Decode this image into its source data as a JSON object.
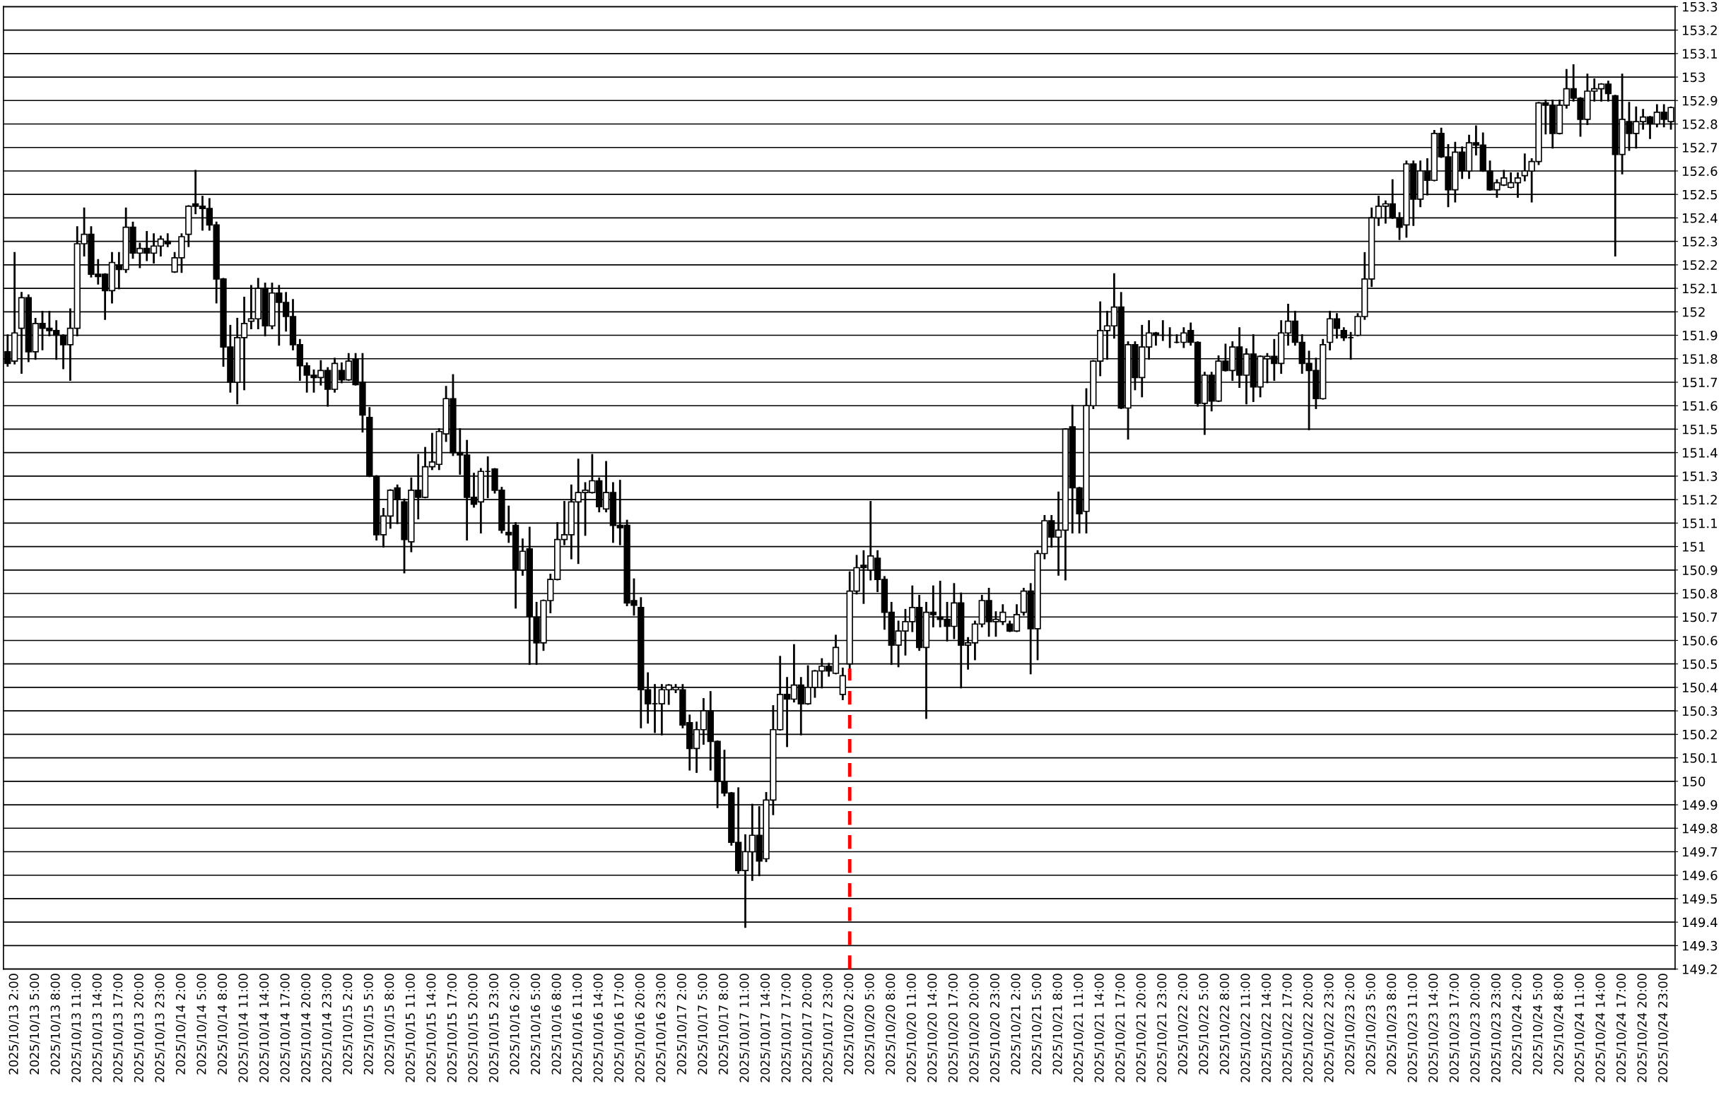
{
  "chart_data": {
    "type": "candlestick",
    "categories": [
      null,
      "2025/10/13 2:00",
      null,
      null,
      "2025/10/13 5:00",
      null,
      null,
      "2025/10/13 8:00",
      null,
      null,
      "2025/10/13 11:00",
      null,
      null,
      "2025/10/13 14:00",
      null,
      null,
      "2025/10/13 17:00",
      null,
      null,
      "2025/10/13 20:00",
      null,
      null,
      "2025/10/13 23:00",
      null,
      null,
      "2025/10/14 2:00",
      null,
      null,
      "2025/10/14 5:00",
      null,
      null,
      "2025/10/14 8:00",
      null,
      null,
      "2025/10/14 11:00",
      null,
      null,
      "2025/10/14 14:00",
      null,
      null,
      "2025/10/14 17:00",
      null,
      null,
      "2025/10/14 20:00",
      null,
      null,
      "2025/10/14 23:00",
      null,
      null,
      "2025/10/15 2:00",
      null,
      null,
      "2025/10/15 5:00",
      null,
      null,
      "2025/10/15 8:00",
      null,
      null,
      "2025/10/15 11:00",
      null,
      null,
      "2025/10/15 14:00",
      null,
      null,
      "2025/10/15 17:00",
      null,
      null,
      "2025/10/15 20:00",
      null,
      null,
      "2025/10/15 23:00",
      null,
      null,
      "2025/10/16 2:00",
      null,
      null,
      "2025/10/16 5:00",
      null,
      null,
      "2025/10/16 8:00",
      null,
      null,
      "2025/10/16 11:00",
      null,
      null,
      "2025/10/16 14:00",
      null,
      null,
      "2025/10/16 17:00",
      null,
      null,
      "2025/10/16 20:00",
      null,
      null,
      "2025/10/16 23:00",
      null,
      null,
      "2025/10/17 2:00",
      null,
      null,
      "2025/10/17 5:00",
      null,
      null,
      "2025/10/17 8:00",
      null,
      null,
      "2025/10/17 11:00",
      null,
      null,
      "2025/10/17 14:00",
      null,
      null,
      "2025/10/17 17:00",
      null,
      null,
      "2025/10/17 20:00",
      null,
      null,
      "2025/10/17 23:00",
      null,
      null,
      "2025/10/20 2:00",
      null,
      null,
      "2025/10/20 5:00",
      null,
      null,
      "2025/10/20 8:00",
      null,
      null,
      "2025/10/20 11:00",
      null,
      null,
      "2025/10/20 14:00",
      null,
      null,
      "2025/10/20 17:00",
      null,
      null,
      "2025/10/20 20:00",
      null,
      null,
      "2025/10/20 23:00",
      null,
      null,
      "2025/10/21 2:00",
      null,
      null,
      "2025/10/21 5:00",
      null,
      null,
      "2025/10/21 8:00",
      null,
      null,
      "2025/10/21 11:00",
      null,
      null,
      "2025/10/21 14:00",
      null,
      null,
      "2025/10/21 17:00",
      null,
      null,
      "2025/10/21 20:00",
      null,
      null,
      "2025/10/21 23:00",
      null,
      null,
      "2025/10/22 2:00",
      null,
      null,
      "2025/10/22 5:00",
      null,
      null,
      "2025/10/22 8:00",
      null,
      null,
      "2025/10/22 11:00",
      null,
      null,
      "2025/10/22 14:00",
      null,
      null,
      "2025/10/22 17:00",
      null,
      null,
      "2025/10/22 20:00",
      null,
      null,
      "2025/10/22 23:00",
      null,
      null,
      "2025/10/23 2:00",
      null,
      null,
      "2025/10/23 5:00",
      null,
      null,
      "2025/10/23 8:00",
      null,
      null,
      "2025/10/23 11:00",
      null,
      null,
      "2025/10/23 14:00",
      null,
      null,
      "2025/10/23 17:00",
      null,
      null,
      "2025/10/23 20:00",
      null,
      null,
      "2025/10/23 23:00",
      null,
      null,
      "2025/10/24 2:00",
      null,
      null,
      "2025/10/24 5:00",
      null,
      null,
      "2025/10/24 8:00",
      null,
      null,
      "2025/10/24 11:00",
      null,
      null,
      "2025/10/24 14:00",
      null,
      null,
      "2025/10/24 17:00",
      null,
      null,
      "2025/10/24 20:00",
      null,
      null,
      "2025/10/24 23:00",
      null
    ],
    "ohlc": [
      [
        151.83,
        151.9,
        151.77,
        151.78
      ],
      [
        151.79,
        152.25,
        151.78,
        151.91
      ],
      [
        151.93,
        152.08,
        151.74,
        152.06
      ],
      [
        152.06,
        152.07,
        151.79,
        151.83
      ],
      [
        151.83,
        151.97,
        151.8,
        151.95
      ],
      [
        151.95,
        152.0,
        151.84,
        151.93
      ],
      [
        151.93,
        152.0,
        151.9,
        151.92
      ],
      [
        151.92,
        151.96,
        151.8,
        151.9
      ],
      [
        151.9,
        151.9,
        151.76,
        151.86
      ],
      [
        151.86,
        152.01,
        151.71,
        151.93
      ],
      [
        151.93,
        152.36,
        151.9,
        152.29
      ],
      [
        152.29,
        152.44,
        152.24,
        152.33
      ],
      [
        152.33,
        152.36,
        152.15,
        152.16
      ],
      [
        152.16,
        152.22,
        152.12,
        152.15
      ],
      [
        152.16,
        152.16,
        151.97,
        152.09
      ],
      [
        152.09,
        152.25,
        152.04,
        152.21
      ],
      [
        152.2,
        152.25,
        152.1,
        152.18
      ],
      [
        152.18,
        152.44,
        152.17,
        152.36
      ],
      [
        152.36,
        152.38,
        152.23,
        152.25
      ],
      [
        152.25,
        152.29,
        152.19,
        152.27
      ],
      [
        152.27,
        152.34,
        152.22,
        152.25
      ],
      [
        152.25,
        152.33,
        152.21,
        152.28
      ],
      [
        152.28,
        152.32,
        152.24,
        152.31
      ],
      [
        152.3,
        152.33,
        152.28,
        152.29
      ],
      [
        152.17,
        152.25,
        152.17,
        152.23
      ],
      [
        152.23,
        152.33,
        152.17,
        152.32
      ],
      [
        152.33,
        152.45,
        152.28,
        152.45
      ],
      [
        152.46,
        152.6,
        152.42,
        152.45
      ],
      [
        152.45,
        152.49,
        152.35,
        152.44
      ],
      [
        152.44,
        152.48,
        152.35,
        152.37
      ],
      [
        152.37,
        152.38,
        152.04,
        152.14
      ],
      [
        152.14,
        152.14,
        151.77,
        151.85
      ],
      [
        151.85,
        151.94,
        151.66,
        151.7
      ],
      [
        151.7,
        151.97,
        151.61,
        151.89
      ],
      [
        151.89,
        152.06,
        151.67,
        151.95
      ],
      [
        151.96,
        152.11,
        151.93,
        151.97
      ],
      [
        151.97,
        152.14,
        151.93,
        152.1
      ],
      [
        152.1,
        152.12,
        151.9,
        151.94
      ],
      [
        151.94,
        152.12,
        151.93,
        152.08
      ],
      [
        152.08,
        152.11,
        151.86,
        152.04
      ],
      [
        152.04,
        152.08,
        151.92,
        151.98
      ],
      [
        151.98,
        152.05,
        151.84,
        151.86
      ],
      [
        151.86,
        151.88,
        151.71,
        151.77
      ],
      [
        151.77,
        151.78,
        151.66,
        151.73
      ],
      [
        151.73,
        151.75,
        151.66,
        151.72
      ],
      [
        151.72,
        151.79,
        151.69,
        151.75
      ],
      [
        151.75,
        151.76,
        151.6,
        151.67
      ],
      [
        151.67,
        151.8,
        151.66,
        151.78
      ],
      [
        151.75,
        151.78,
        151.7,
        151.71
      ],
      [
        151.71,
        151.82,
        151.71,
        151.79
      ],
      [
        151.8,
        151.82,
        151.69,
        151.69
      ],
      [
        151.7,
        151.82,
        151.49,
        151.56
      ],
      [
        151.55,
        151.59,
        151.3,
        151.3
      ],
      [
        151.3,
        151.3,
        151.03,
        151.05
      ],
      [
        151.05,
        151.16,
        151.0,
        151.13
      ],
      [
        151.13,
        151.24,
        151.08,
        151.24
      ],
      [
        151.25,
        151.26,
        151.1,
        151.2
      ],
      [
        151.19,
        151.2,
        150.89,
        151.03
      ],
      [
        151.02,
        151.29,
        150.98,
        151.24
      ],
      [
        151.24,
        151.39,
        151.12,
        151.21
      ],
      [
        151.21,
        151.42,
        151.21,
        151.34
      ],
      [
        151.34,
        151.48,
        151.33,
        151.36
      ],
      [
        151.35,
        151.5,
        151.33,
        151.49
      ],
      [
        151.48,
        151.68,
        151.45,
        151.63
      ],
      [
        151.63,
        151.73,
        151.39,
        151.4
      ],
      [
        151.4,
        151.5,
        151.31,
        151.39
      ],
      [
        151.39,
        151.45,
        151.03,
        151.21
      ],
      [
        151.21,
        151.31,
        151.17,
        151.18
      ],
      [
        151.19,
        151.33,
        151.06,
        151.32
      ],
      [
        151.32,
        151.38,
        151.21,
        151.32
      ],
      [
        151.33,
        151.33,
        151.23,
        151.24
      ],
      [
        151.24,
        151.25,
        151.06,
        151.07
      ],
      [
        151.06,
        151.17,
        151.02,
        151.05
      ],
      [
        151.09,
        151.1,
        150.74,
        150.9
      ],
      [
        150.9,
        151.03,
        150.88,
        150.98
      ],
      [
        150.99,
        151.08,
        150.5,
        150.7
      ],
      [
        150.7,
        150.76,
        150.5,
        150.59
      ],
      [
        150.59,
        150.77,
        150.56,
        150.77
      ],
      [
        150.77,
        150.88,
        150.72,
        150.86
      ],
      [
        150.86,
        151.1,
        150.86,
        151.03
      ],
      [
        151.03,
        151.19,
        151.01,
        151.05
      ],
      [
        151.05,
        151.26,
        150.95,
        151.19
      ],
      [
        151.19,
        151.37,
        150.93,
        151.23
      ],
      [
        151.23,
        151.27,
        151.05,
        151.24
      ],
      [
        151.23,
        151.39,
        151.23,
        151.28
      ],
      [
        151.28,
        151.29,
        151.15,
        151.17
      ],
      [
        151.16,
        151.36,
        151.15,
        151.23
      ],
      [
        151.23,
        151.27,
        151.02,
        151.09
      ],
      [
        151.09,
        151.28,
        151.01,
        151.08
      ],
      [
        151.09,
        151.11,
        150.75,
        150.76
      ],
      [
        150.77,
        150.86,
        150.71,
        150.75
      ],
      [
        150.74,
        150.78,
        150.23,
        150.39
      ],
      [
        150.39,
        150.46,
        150.25,
        150.33
      ],
      [
        150.33,
        150.41,
        150.21,
        150.33
      ],
      [
        150.33,
        150.41,
        150.2,
        150.39
      ],
      [
        150.39,
        150.41,
        150.33,
        150.41
      ],
      [
        150.39,
        150.41,
        150.38,
        150.4
      ],
      [
        150.39,
        150.41,
        150.23,
        150.24
      ],
      [
        150.25,
        150.28,
        150.05,
        150.14
      ],
      [
        150.14,
        150.25,
        150.04,
        150.22
      ],
      [
        150.22,
        150.35,
        150.16,
        150.3
      ],
      [
        150.3,
        150.38,
        150.05,
        150.17
      ],
      [
        150.17,
        150.17,
        149.89,
        150.0
      ],
      [
        150.0,
        150.13,
        149.94,
        149.95
      ],
      [
        149.95,
        149.95,
        149.73,
        149.74
      ],
      [
        149.74,
        149.97,
        149.61,
        149.62
      ],
      [
        149.62,
        149.77,
        149.38,
        149.7
      ],
      [
        149.7,
        149.9,
        149.58,
        149.77
      ],
      [
        149.77,
        149.89,
        149.6,
        149.66
      ],
      [
        149.67,
        149.95,
        149.66,
        149.92
      ],
      [
        149.92,
        150.32,
        149.86,
        150.22
      ],
      [
        150.22,
        150.53,
        150.22,
        150.37
      ],
      [
        150.37,
        150.44,
        150.15,
        150.35
      ],
      [
        150.35,
        150.58,
        150.34,
        150.41
      ],
      [
        150.41,
        150.44,
        150.2,
        150.33
      ],
      [
        150.33,
        150.49,
        150.33,
        150.4
      ],
      [
        150.4,
        150.47,
        150.36,
        150.47
      ],
      [
        150.47,
        150.52,
        150.4,
        150.49
      ],
      [
        150.49,
        150.5,
        150.45,
        150.47
      ],
      [
        150.46,
        150.62,
        150.46,
        150.57
      ],
      [
        150.37,
        150.48,
        150.35,
        150.45
      ],
      [
        150.5,
        150.89,
        150.48,
        150.81
      ],
      [
        150.81,
        150.96,
        150.8,
        150.91
      ],
      [
        150.92,
        150.98,
        150.76,
        150.91
      ],
      [
        150.9,
        151.19,
        150.86,
        150.96
      ],
      [
        150.95,
        150.98,
        150.81,
        150.86
      ],
      [
        150.86,
        150.87,
        150.65,
        150.72
      ],
      [
        150.72,
        150.76,
        150.5,
        150.58
      ],
      [
        150.58,
        150.68,
        150.49,
        150.64
      ],
      [
        150.64,
        150.73,
        150.54,
        150.68
      ],
      [
        150.68,
        150.83,
        150.64,
        150.74
      ],
      [
        150.74,
        150.79,
        150.56,
        150.57
      ],
      [
        150.57,
        150.76,
        150.27,
        150.72
      ],
      [
        150.72,
        150.83,
        150.66,
        150.71
      ],
      [
        150.7,
        150.85,
        150.66,
        150.69
      ],
      [
        150.69,
        150.76,
        150.6,
        150.66
      ],
      [
        150.66,
        150.84,
        150.61,
        150.76
      ],
      [
        150.76,
        150.8,
        150.4,
        150.58
      ],
      [
        150.58,
        150.61,
        150.48,
        150.59
      ],
      [
        150.59,
        150.68,
        150.52,
        150.67
      ],
      [
        150.67,
        150.79,
        150.66,
        150.77
      ],
      [
        150.77,
        150.82,
        150.62,
        150.68
      ],
      [
        150.68,
        150.72,
        150.62,
        150.69
      ],
      [
        150.68,
        150.75,
        150.67,
        150.72
      ],
      [
        150.67,
        150.68,
        150.64,
        150.64
      ],
      [
        150.64,
        150.75,
        150.64,
        150.71
      ],
      [
        150.72,
        150.82,
        150.71,
        150.81
      ],
      [
        150.81,
        150.84,
        150.46,
        150.65
      ],
      [
        150.65,
        150.98,
        150.52,
        150.97
      ],
      [
        150.97,
        151.13,
        150.95,
        151.11
      ],
      [
        151.11,
        151.13,
        151.0,
        151.04
      ],
      [
        151.04,
        151.23,
        150.88,
        151.07
      ],
      [
        151.07,
        151.5,
        150.86,
        151.5
      ],
      [
        151.51,
        151.6,
        151.06,
        151.25
      ],
      [
        151.25,
        151.25,
        151.06,
        151.14
      ],
      [
        151.15,
        151.67,
        151.06,
        151.6
      ],
      [
        151.6,
        151.79,
        151.59,
        151.79
      ],
      [
        151.79,
        152.04,
        151.73,
        151.92
      ],
      [
        151.92,
        152.0,
        151.8,
        151.94
      ],
      [
        151.94,
        152.16,
        151.89,
        152.02
      ],
      [
        152.02,
        152.08,
        151.59,
        151.59
      ],
      [
        151.59,
        151.87,
        151.46,
        151.86
      ],
      [
        151.86,
        151.87,
        151.67,
        151.72
      ],
      [
        151.72,
        151.94,
        151.64,
        151.85
      ],
      [
        151.85,
        151.96,
        151.8,
        151.91
      ],
      [
        151.91,
        151.91,
        151.86,
        151.9
      ],
      [
        151.9,
        151.96,
        151.88,
        151.9
      ],
      [
        151.9,
        151.93,
        151.85,
        151.9
      ],
      [
        151.87,
        151.9,
        151.87,
        151.87
      ],
      [
        151.87,
        151.93,
        151.85,
        151.91
      ],
      [
        151.92,
        151.95,
        151.86,
        151.87
      ],
      [
        151.87,
        151.87,
        151.6,
        151.61
      ],
      [
        151.61,
        151.74,
        151.48,
        151.73
      ],
      [
        151.73,
        151.74,
        151.58,
        151.62
      ],
      [
        151.62,
        151.81,
        151.62,
        151.79
      ],
      [
        151.79,
        151.86,
        151.75,
        151.75
      ],
      [
        151.75,
        151.87,
        151.71,
        151.85
      ],
      [
        151.85,
        151.93,
        151.68,
        151.73
      ],
      [
        151.73,
        151.84,
        151.61,
        151.82
      ],
      [
        151.82,
        151.9,
        151.62,
        151.68
      ],
      [
        151.68,
        151.81,
        151.64,
        151.81
      ],
      [
        151.8,
        151.82,
        151.7,
        151.81
      ],
      [
        151.81,
        151.88,
        151.71,
        151.78
      ],
      [
        151.78,
        151.96,
        151.74,
        151.91
      ],
      [
        151.91,
        152.03,
        151.86,
        151.96
      ],
      [
        151.96,
        152.0,
        151.86,
        151.87
      ],
      [
        151.87,
        151.9,
        151.74,
        151.78
      ],
      [
        151.78,
        151.83,
        151.5,
        151.75
      ],
      [
        151.75,
        151.8,
        151.59,
        151.63
      ],
      [
        151.63,
        151.88,
        151.63,
        151.86
      ],
      [
        151.87,
        152.0,
        151.84,
        151.97
      ],
      [
        151.97,
        151.99,
        151.89,
        151.93
      ],
      [
        151.92,
        151.93,
        151.88,
        151.89
      ],
      [
        151.89,
        151.91,
        151.8,
        151.89
      ],
      [
        151.9,
        151.99,
        151.9,
        151.98
      ],
      [
        151.98,
        152.25,
        151.97,
        152.14
      ],
      [
        152.14,
        152.44,
        152.11,
        152.4
      ],
      [
        152.4,
        152.49,
        152.37,
        152.45
      ],
      [
        152.45,
        152.47,
        152.38,
        152.46
      ],
      [
        152.46,
        152.56,
        152.4,
        152.4
      ],
      [
        152.4,
        152.42,
        152.31,
        152.36
      ],
      [
        152.37,
        152.64,
        152.32,
        152.63
      ],
      [
        152.63,
        152.64,
        152.37,
        152.48
      ],
      [
        152.48,
        152.64,
        152.45,
        152.6
      ],
      [
        152.6,
        152.65,
        152.5,
        152.56
      ],
      [
        152.56,
        152.77,
        152.56,
        152.76
      ],
      [
        152.76,
        152.78,
        152.66,
        152.66
      ],
      [
        152.66,
        152.71,
        152.45,
        152.52
      ],
      [
        152.52,
        152.72,
        152.47,
        152.68
      ],
      [
        152.68,
        152.7,
        152.57,
        152.6
      ],
      [
        152.6,
        152.75,
        152.57,
        152.72
      ],
      [
        152.72,
        152.79,
        152.67,
        152.71
      ],
      [
        152.71,
        152.76,
        152.6,
        152.6
      ],
      [
        152.6,
        152.64,
        152.52,
        152.52
      ],
      [
        152.52,
        152.56,
        152.49,
        152.55
      ],
      [
        152.54,
        152.6,
        152.54,
        152.57
      ],
      [
        152.53,
        152.59,
        152.53,
        152.55
      ],
      [
        152.55,
        152.59,
        152.49,
        152.57
      ],
      [
        152.58,
        152.67,
        152.56,
        152.6
      ],
      [
        152.6,
        152.65,
        152.47,
        152.64
      ],
      [
        152.64,
        152.89,
        152.63,
        152.89
      ],
      [
        152.89,
        152.9,
        152.76,
        152.88
      ],
      [
        152.88,
        152.9,
        152.7,
        152.76
      ],
      [
        152.76,
        152.9,
        152.76,
        152.88
      ],
      [
        152.88,
        153.03,
        152.87,
        152.95
      ],
      [
        152.95,
        153.05,
        152.9,
        152.91
      ],
      [
        152.91,
        152.91,
        152.75,
        152.82
      ],
      [
        152.82,
        153.01,
        152.8,
        152.94
      ],
      [
        152.94,
        152.99,
        152.9,
        152.95
      ],
      [
        152.95,
        152.97,
        152.9,
        152.97
      ],
      [
        152.97,
        152.98,
        152.9,
        152.93
      ],
      [
        152.92,
        152.92,
        152.24,
        152.67
      ],
      [
        152.67,
        153.01,
        152.59,
        152.82
      ],
      [
        152.81,
        152.89,
        152.69,
        152.76
      ],
      [
        152.76,
        152.87,
        152.7,
        152.81
      ],
      [
        152.81,
        152.86,
        152.78,
        152.83
      ],
      [
        152.83,
        152.83,
        152.74,
        152.8
      ],
      [
        152.8,
        152.88,
        152.79,
        152.85
      ],
      [
        152.85,
        152.88,
        152.79,
        152.82
      ],
      [
        152.81,
        152.87,
        152.78,
        152.87
      ]
    ],
    "ylim": [
      149.2,
      153.3
    ],
    "yticks": [
      149.2,
      149.3,
      149.4,
      149.5,
      149.6,
      149.7,
      149.8,
      149.9,
      150,
      150.1,
      150.2,
      150.3,
      150.4,
      150.5,
      150.6,
      150.7,
      150.8,
      150.9,
      151,
      151.1,
      151.2,
      151.3,
      151.4,
      151.5,
      151.6,
      151.7,
      151.8,
      151.9,
      152,
      152.1,
      152.2,
      152.3,
      152.4,
      152.5,
      152.6,
      152.7,
      152.8,
      152.9,
      153,
      153.1,
      153.2,
      153.3
    ],
    "grid": "y",
    "ref_lines": [
      {
        "axis": "x",
        "value": "2025/10/20 2:00",
        "color": "#ff0000",
        "line_style": "dashed"
      }
    ]
  }
}
